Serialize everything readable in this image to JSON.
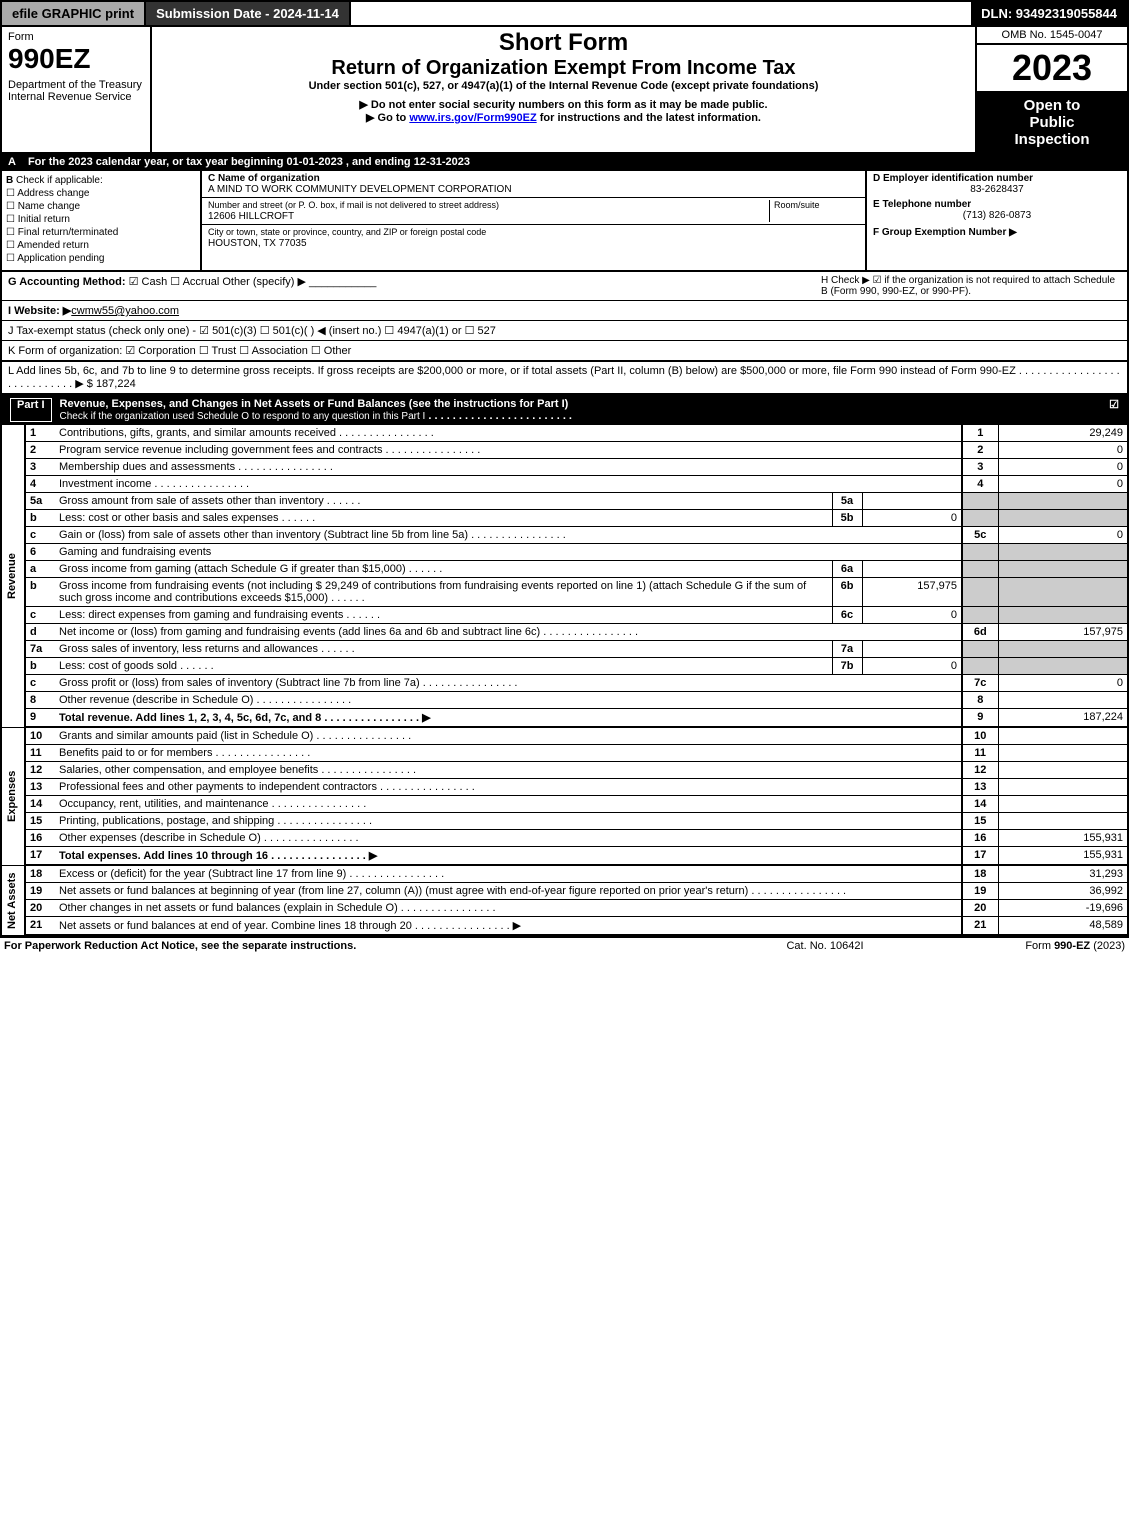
{
  "topbar": {
    "efile": "efile GRAPHIC print",
    "submission": "Submission Date - 2024-11-14",
    "dln": "DLN: 93492319055844"
  },
  "header": {
    "form_word": "Form",
    "form_no": "990EZ",
    "dept": "Department of the Treasury\nInternal Revenue Service",
    "title1": "Short Form",
    "title2": "Return of Organization Exempt From Income Tax",
    "sub1": "Under section 501(c), 527, or 4947(a)(1) of the Internal Revenue Code (except private foundations)",
    "sub2": "▶ Do not enter social security numbers on this form as it may be made public.",
    "sub3_prefix": "▶ Go to ",
    "sub3_link": "www.irs.gov/Form990EZ",
    "sub3_suffix": " for instructions and the latest information.",
    "omb": "OMB No. 1545-0047",
    "year": "2023",
    "inspection": "Open to\nPublic\nInspection"
  },
  "line_a": "For the 2023 calendar year, or tax year beginning 01-01-2023 , and ending 12-31-2023",
  "section_b": {
    "label": "Check if applicable:",
    "items": [
      "Address change",
      "Name change",
      "Initial return",
      "Final return/terminated",
      "Amended return",
      "Application pending"
    ]
  },
  "section_c": {
    "name_label": "C Name of organization",
    "name": "A MIND TO WORK COMMUNITY DEVELOPMENT CORPORATION",
    "street_label": "Number and street (or P. O. box, if mail is not delivered to street address)",
    "room_label": "Room/suite",
    "street": "12606 HILLCROFT",
    "city_label": "City or town, state or province, country, and ZIP or foreign postal code",
    "city": "HOUSTON, TX  77035"
  },
  "section_d": {
    "ein_label": "D Employer identification number",
    "ein": "83-2628437",
    "tel_label": "E Telephone number",
    "tel": "(713) 826-0873",
    "group_label": "F Group Exemption Number  ▶"
  },
  "line_g": {
    "label": "G Accounting Method:",
    "cash": "Cash",
    "accrual": "Accrual",
    "other": "Other (specify) ▶"
  },
  "line_h": "H   Check ▶ ☑ if the organization is not required to attach Schedule B (Form 990, 990-EZ, or 990-PF).",
  "line_i": {
    "label": "I Website: ▶",
    "val": "cwmw55@yahoo.com"
  },
  "line_j": "J Tax-exempt status (check only one) - ☑ 501(c)(3) ☐ 501(c)(  ) ◀ (insert no.) ☐ 4947(a)(1) or ☐ 527",
  "line_k": "K Form of organization:  ☑ Corporation  ☐ Trust  ☐ Association  ☐ Other",
  "line_l": {
    "text": "L Add lines 5b, 6c, and 7b to line 9 to determine gross receipts. If gross receipts are $200,000 or more, or if total assets (Part II, column (B) below) are $500,000 or more, file Form 990 instead of Form 990-EZ",
    "val": "▶ $ 187,224"
  },
  "part1": {
    "label": "Part I",
    "title": "Revenue, Expenses, and Changes in Net Assets or Fund Balances (see the instructions for Part I)",
    "subtitle": "Check if the organization used Schedule O to respond to any question in this Part I"
  },
  "sides": {
    "revenue": "Revenue",
    "expenses": "Expenses",
    "netassets": "Net Assets"
  },
  "revenue_lines": {
    "l1": {
      "n": "1",
      "d": "Contributions, gifts, grants, and similar amounts received",
      "rn": "1",
      "rv": "29,249"
    },
    "l2": {
      "n": "2",
      "d": "Program service revenue including government fees and contracts",
      "rn": "2",
      "rv": "0"
    },
    "l3": {
      "n": "3",
      "d": "Membership dues and assessments",
      "rn": "3",
      "rv": "0"
    },
    "l4": {
      "n": "4",
      "d": "Investment income",
      "rn": "4",
      "rv": "0"
    },
    "l5a": {
      "n": "5a",
      "d": "Gross amount from sale of assets other than inventory",
      "sl": "5a",
      "sv": ""
    },
    "l5b": {
      "n": "b",
      "d": "Less: cost or other basis and sales expenses",
      "sl": "5b",
      "sv": "0"
    },
    "l5c": {
      "n": "c",
      "d": "Gain or (loss) from sale of assets other than inventory (Subtract line 5b from line 5a)",
      "rn": "5c",
      "rv": "0"
    },
    "l6": {
      "n": "6",
      "d": "Gaming and fundraising events"
    },
    "l6a": {
      "n": "a",
      "d": "Gross income from gaming (attach Schedule G if greater than $15,000)",
      "sl": "6a",
      "sv": ""
    },
    "l6b": {
      "n": "b",
      "d": "Gross income from fundraising events (not including $  29,249       of contributions from fundraising events reported on line 1) (attach Schedule G if the sum of such gross income and contributions exceeds $15,000)",
      "sl": "6b",
      "sv": "157,975"
    },
    "l6c": {
      "n": "c",
      "d": "Less: direct expenses from gaming and fundraising events",
      "sl": "6c",
      "sv": "0"
    },
    "l6d": {
      "n": "d",
      "d": "Net income or (loss) from gaming and fundraising events (add lines 6a and 6b and subtract line 6c)",
      "rn": "6d",
      "rv": "157,975"
    },
    "l7a": {
      "n": "7a",
      "d": "Gross sales of inventory, less returns and allowances",
      "sl": "7a",
      "sv": ""
    },
    "l7b": {
      "n": "b",
      "d": "Less: cost of goods sold",
      "sl": "7b",
      "sv": "0"
    },
    "l7c": {
      "n": "c",
      "d": "Gross profit or (loss) from sales of inventory (Subtract line 7b from line 7a)",
      "rn": "7c",
      "rv": "0"
    },
    "l8": {
      "n": "8",
      "d": "Other revenue (describe in Schedule O)",
      "rn": "8",
      "rv": ""
    },
    "l9": {
      "n": "9",
      "d": "Total revenue. Add lines 1, 2, 3, 4, 5c, 6d, 7c, and 8",
      "rn": "9",
      "rv": "187,224",
      "arrow": "▶"
    }
  },
  "expense_lines": {
    "l10": {
      "n": "10",
      "d": "Grants and similar amounts paid (list in Schedule O)",
      "rn": "10",
      "rv": ""
    },
    "l11": {
      "n": "11",
      "d": "Benefits paid to or for members",
      "rn": "11",
      "rv": ""
    },
    "l12": {
      "n": "12",
      "d": "Salaries, other compensation, and employee benefits",
      "rn": "12",
      "rv": ""
    },
    "l13": {
      "n": "13",
      "d": "Professional fees and other payments to independent contractors",
      "rn": "13",
      "rv": ""
    },
    "l14": {
      "n": "14",
      "d": "Occupancy, rent, utilities, and maintenance",
      "rn": "14",
      "rv": ""
    },
    "l15": {
      "n": "15",
      "d": "Printing, publications, postage, and shipping",
      "rn": "15",
      "rv": ""
    },
    "l16": {
      "n": "16",
      "d": "Other expenses (describe in Schedule O)",
      "rn": "16",
      "rv": "155,931"
    },
    "l17": {
      "n": "17",
      "d": "Total expenses. Add lines 10 through 16",
      "rn": "17",
      "rv": "155,931",
      "arrow": "▶"
    }
  },
  "net_lines": {
    "l18": {
      "n": "18",
      "d": "Excess or (deficit) for the year (Subtract line 17 from line 9)",
      "rn": "18",
      "rv": "31,293"
    },
    "l19": {
      "n": "19",
      "d": "Net assets or fund balances at beginning of year (from line 27, column (A)) (must agree with end-of-year figure reported on prior year's return)",
      "rn": "19",
      "rv": "36,992"
    },
    "l20": {
      "n": "20",
      "d": "Other changes in net assets or fund balances (explain in Schedule O)",
      "rn": "20",
      "rv": "-19,696"
    },
    "l21": {
      "n": "21",
      "d": "Net assets or fund balances at end of year. Combine lines 18 through 20",
      "rn": "21",
      "rv": "48,589",
      "arrow": "▶"
    }
  },
  "footer": {
    "left": "For Paperwork Reduction Act Notice, see the separate instructions.",
    "mid": "Cat. No. 10642I",
    "right": "Form 990-EZ (2023)"
  }
}
